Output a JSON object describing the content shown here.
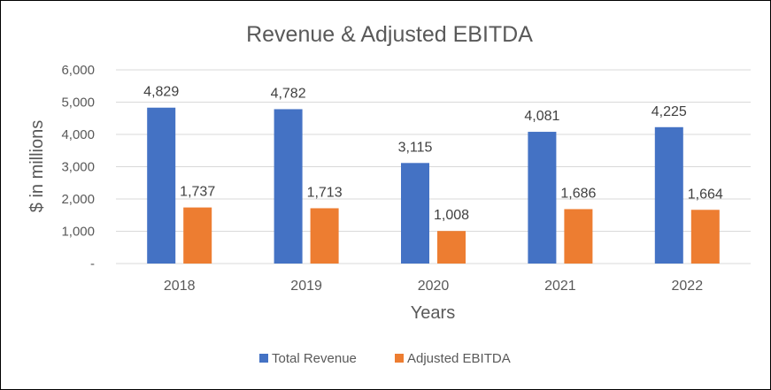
{
  "chart_data": {
    "type": "bar",
    "title": "Revenue & Adjusted EBITDA",
    "xlabel": "Years",
    "ylabel": "$ in millions",
    "categories": [
      "2018",
      "2019",
      "2020",
      "2021",
      "2022"
    ],
    "series": [
      {
        "name": "Total Revenue",
        "color": "#4472C4",
        "values": [
          4829,
          4782,
          3115,
          4081,
          4225
        ],
        "labels": [
          "4,829",
          "4,782",
          "3,115",
          "4,081",
          "4,225"
        ]
      },
      {
        "name": "Adjusted EBITDA",
        "color": "#ED7D31",
        "values": [
          1737,
          1713,
          1008,
          1686,
          1664
        ],
        "labels": [
          "1,737",
          "1,713",
          "1,008",
          "1,686",
          "1,664"
        ]
      }
    ],
    "ylim": [
      0,
      6000
    ],
    "yticks": [
      0,
      1000,
      2000,
      3000,
      4000,
      5000,
      6000
    ],
    "ytick_labels": [
      "-",
      "1,000",
      "2,000",
      "3,000",
      "4,000",
      "5,000",
      "6,000"
    ],
    "grid": true,
    "legend": "bottom"
  }
}
